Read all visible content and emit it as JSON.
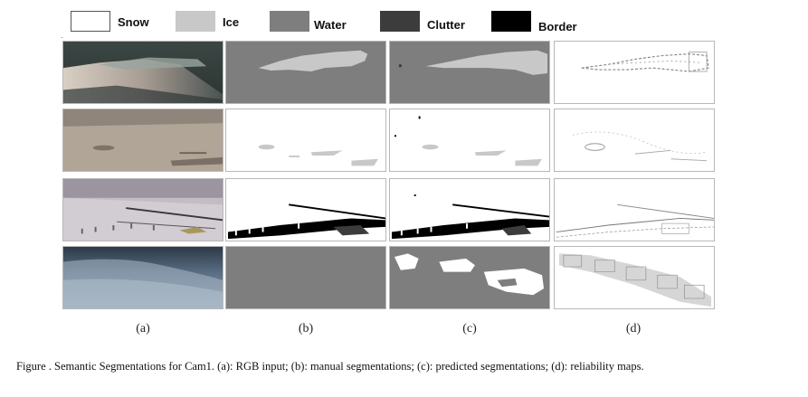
{
  "legend": [
    {
      "label": "Snow",
      "color": "#ffffff"
    },
    {
      "label": "Ice",
      "color": "#c8c8c8"
    },
    {
      "label": "Water",
      "color": "#7e7e7e"
    },
    {
      "label": "Clutter",
      "color": "#3c3c3c"
    },
    {
      "label": "Border",
      "color": "#000000"
    }
  ],
  "columns": [
    {
      "label": "(a)"
    },
    {
      "label": "(b)"
    },
    {
      "label": "(c)"
    },
    {
      "label": "(d)"
    }
  ],
  "caption": "Figure .   Semantic Segmentations for Cam1. (a): RGB input; (b): manual segmentations; (c): predicted segmentations; (d): reliability  maps."
}
